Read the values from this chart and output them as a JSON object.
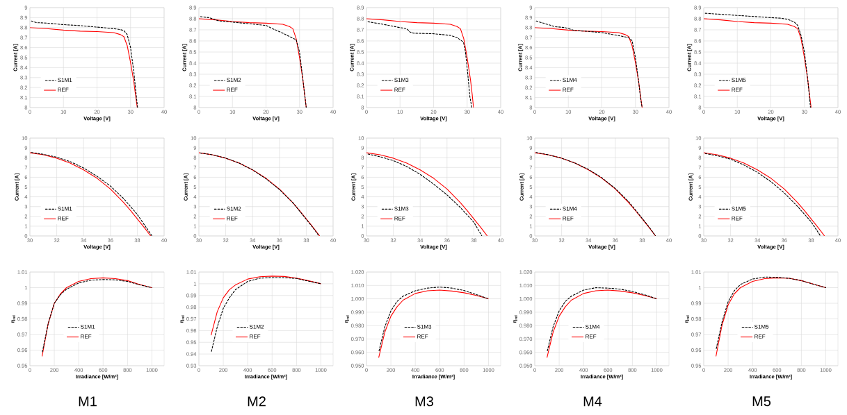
{
  "chart_data": [
    {
      "type": "line",
      "xlabel": "Voltage [V]",
      "ylabel": "Current [A]",
      "xlim": [
        0,
        40
      ],
      "ylim": [
        8,
        9
      ],
      "xticks": [
        0,
        10,
        20,
        30,
        40
      ],
      "yticks": [
        8,
        8.1,
        8.2,
        8.3,
        8.4,
        8.5,
        8.6,
        8.7,
        8.8,
        8.9,
        9
      ],
      "grid": true,
      "legend": "bottom left",
      "series": [
        {
          "name": "S1M1",
          "color": "#000000",
          "line_style": "dashed",
          "x": [
            0,
            2,
            5,
            10,
            15,
            20,
            25,
            27,
            28,
            29,
            30,
            31,
            31.6,
            32.1
          ],
          "values": [
            8.87,
            8.85,
            8.845,
            8.83,
            8.82,
            8.805,
            8.79,
            8.78,
            8.77,
            8.73,
            8.6,
            8.35,
            8.15,
            8.0
          ]
        },
        {
          "name": "REF",
          "color": "#ff0000",
          "line_style": "solid",
          "x": [
            0,
            5,
            10,
            15,
            20,
            25,
            27,
            28,
            29,
            30,
            31,
            31.5,
            32
          ],
          "values": [
            8.8,
            8.79,
            8.775,
            8.765,
            8.76,
            8.75,
            8.73,
            8.71,
            8.62,
            8.45,
            8.25,
            8.12,
            8.0
          ]
        }
      ]
    },
    {
      "type": "line",
      "xlabel": "Voltage [V]",
      "ylabel": "Current [A]",
      "xlim": [
        0,
        40
      ],
      "ylim": [
        8,
        8.9
      ],
      "xticks": [
        0,
        10,
        20,
        30,
        40
      ],
      "yticks": [
        8,
        8.1,
        8.2,
        8.3,
        8.4,
        8.5,
        8.6,
        8.7,
        8.8,
        8.9
      ],
      "grid": true,
      "legend": "bottom left",
      "series": [
        {
          "name": "S1M2",
          "color": "#000000",
          "line_style": "dashed",
          "x": [
            0,
            3,
            6,
            10,
            15,
            20,
            22,
            25,
            27,
            29,
            30,
            31,
            31.6,
            32
          ],
          "values": [
            8.82,
            8.81,
            8.78,
            8.77,
            8.755,
            8.74,
            8.71,
            8.67,
            8.64,
            8.61,
            8.5,
            8.25,
            8.1,
            8.0
          ]
        },
        {
          "name": "REF",
          "color": "#ff0000",
          "line_style": "solid",
          "x": [
            0,
            5,
            10,
            15,
            20,
            25,
            27,
            28,
            29,
            30,
            31,
            31.5,
            32
          ],
          "values": [
            8.8,
            8.79,
            8.775,
            8.765,
            8.76,
            8.75,
            8.73,
            8.71,
            8.62,
            8.45,
            8.25,
            8.12,
            8.0
          ]
        }
      ]
    },
    {
      "type": "line",
      "xlabel": "Voltage [V]",
      "ylabel": "Current [A]",
      "xlim": [
        0,
        40
      ],
      "ylim": [
        8,
        8.9
      ],
      "xticks": [
        0,
        10,
        20,
        30,
        40
      ],
      "yticks": [
        8,
        8.1,
        8.2,
        8.3,
        8.4,
        8.5,
        8.6,
        8.7,
        8.8,
        8.9
      ],
      "grid": true,
      "legend": "bottom left",
      "series": [
        {
          "name": "S1M3",
          "color": "#000000",
          "line_style": "dashed",
          "x": [
            0,
            5,
            10,
            12,
            13,
            14,
            20,
            25,
            27,
            28.9,
            29.5,
            30.2,
            30.8,
            31.4
          ],
          "values": [
            8.775,
            8.75,
            8.72,
            8.71,
            8.68,
            8.67,
            8.665,
            8.65,
            8.63,
            8.59,
            8.5,
            8.3,
            8.1,
            8.0
          ]
        },
        {
          "name": "REF",
          "color": "#ff0000",
          "line_style": "solid",
          "x": [
            0,
            5,
            10,
            15,
            20,
            25,
            27,
            28,
            29,
            30,
            31,
            31.5,
            31.9
          ],
          "values": [
            8.8,
            8.79,
            8.775,
            8.765,
            8.76,
            8.75,
            8.73,
            8.71,
            8.62,
            8.45,
            8.25,
            8.12,
            8.0
          ]
        }
      ]
    },
    {
      "type": "line",
      "xlabel": "Voltage [V]",
      "ylabel": "Current [A]",
      "xlim": [
        0,
        40
      ],
      "ylim": [
        8,
        9
      ],
      "xticks": [
        0,
        10,
        20,
        30,
        40
      ],
      "yticks": [
        8,
        8.1,
        8.2,
        8.3,
        8.4,
        8.5,
        8.6,
        8.7,
        8.8,
        8.9,
        9
      ],
      "grid": true,
      "legend": "bottom left",
      "series": [
        {
          "name": "S1M4",
          "color": "#000000",
          "line_style": "dashed",
          "x": [
            0,
            3,
            5,
            6,
            9,
            12,
            15,
            20,
            25,
            28,
            29,
            30,
            31,
            31.5,
            32
          ],
          "values": [
            8.87,
            8.84,
            8.82,
            8.81,
            8.8,
            8.77,
            8.765,
            8.75,
            8.72,
            8.7,
            8.67,
            8.5,
            8.25,
            8.1,
            8.0
          ]
        },
        {
          "name": "REF",
          "color": "#ff0000",
          "line_style": "solid",
          "x": [
            0,
            5,
            10,
            15,
            20,
            25,
            27,
            28,
            29,
            30,
            31,
            31.5,
            32
          ],
          "values": [
            8.8,
            8.79,
            8.775,
            8.765,
            8.76,
            8.75,
            8.73,
            8.71,
            8.62,
            8.45,
            8.25,
            8.12,
            8.0
          ]
        }
      ]
    },
    {
      "type": "line",
      "xlabel": "Voltage [V]",
      "ylabel": "Current [A]",
      "xlim": [
        0,
        40
      ],
      "ylim": [
        8,
        8.9
      ],
      "xticks": [
        0,
        10,
        20,
        30,
        40
      ],
      "yticks": [
        8,
        8.1,
        8.2,
        8.3,
        8.4,
        8.5,
        8.6,
        8.7,
        8.8,
        8.9
      ],
      "grid": true,
      "legend": "bottom left",
      "series": [
        {
          "name": "S1M5",
          "color": "#000000",
          "line_style": "dashed",
          "x": [
            0,
            5,
            10,
            15,
            20,
            23,
            25,
            27,
            28,
            29,
            30,
            31,
            31.5,
            31.8
          ],
          "values": [
            8.85,
            8.84,
            8.83,
            8.82,
            8.81,
            8.805,
            8.795,
            8.77,
            8.74,
            8.65,
            8.5,
            8.25,
            8.1,
            8.0
          ]
        },
        {
          "name": "REF",
          "color": "#ff0000",
          "line_style": "solid",
          "x": [
            0,
            5,
            10,
            15,
            20,
            25,
            27,
            28,
            29,
            30,
            31,
            31.5,
            32
          ],
          "values": [
            8.8,
            8.79,
            8.775,
            8.765,
            8.76,
            8.75,
            8.73,
            8.71,
            8.62,
            8.45,
            8.25,
            8.12,
            8.0
          ]
        }
      ]
    },
    {
      "type": "line",
      "xlabel": "Voltage [V]",
      "ylabel": "Current [A]",
      "xlim": [
        30,
        40
      ],
      "ylim": [
        0,
        10
      ],
      "xticks": [
        30,
        32,
        34,
        36,
        38,
        40
      ],
      "yticks": [
        0,
        1,
        2,
        3,
        4,
        5,
        6,
        7,
        8,
        9,
        10
      ],
      "grid": true,
      "legend": "bottom left",
      "series": [
        {
          "name": "S1M1",
          "color": "#000000",
          "line_style": "dashed",
          "x": [
            30,
            31,
            32,
            33,
            34,
            35,
            36,
            37,
            38,
            38.5,
            39.1
          ],
          "values": [
            8.55,
            8.35,
            8.05,
            7.6,
            6.95,
            6.1,
            5.1,
            3.8,
            2.2,
            1.2,
            0
          ]
        },
        {
          "name": "REF",
          "color": "#ff0000",
          "line_style": "solid",
          "x": [
            30,
            31,
            32,
            33,
            34,
            35,
            36,
            37,
            37.5,
            38,
            38.5,
            39
          ],
          "values": [
            8.5,
            8.3,
            7.95,
            7.45,
            6.75,
            5.9,
            4.8,
            3.4,
            2.6,
            1.75,
            0.9,
            0
          ]
        }
      ]
    },
    {
      "type": "line",
      "xlabel": "Voltage [V]",
      "ylabel": "Current [A]",
      "xlim": [
        30,
        40
      ],
      "ylim": [
        0,
        10
      ],
      "xticks": [
        30,
        32,
        34,
        36,
        38,
        40
      ],
      "yticks": [
        0,
        1,
        2,
        3,
        4,
        5,
        6,
        7,
        8,
        9,
        10
      ],
      "grid": true,
      "legend": "bottom left",
      "series": [
        {
          "name": "S1M2",
          "color": "#000000",
          "line_style": "dashed",
          "x": [
            30,
            31,
            32,
            33,
            34,
            35,
            36,
            37,
            38,
            38.5,
            38.95
          ],
          "values": [
            8.5,
            8.3,
            7.95,
            7.45,
            6.75,
            5.85,
            4.75,
            3.4,
            1.7,
            0.85,
            0
          ]
        },
        {
          "name": "REF",
          "color": "#ff0000",
          "line_style": "solid",
          "x": [
            30,
            31,
            32,
            33,
            34,
            35,
            36,
            37,
            37.5,
            38,
            38.5,
            39
          ],
          "values": [
            8.5,
            8.3,
            7.95,
            7.45,
            6.75,
            5.9,
            4.8,
            3.4,
            2.6,
            1.75,
            0.9,
            0
          ]
        }
      ]
    },
    {
      "type": "line",
      "xlabel": "Voltage [V]",
      "ylabel": "Current [A]",
      "xlim": [
        30,
        40
      ],
      "ylim": [
        0,
        10
      ],
      "xticks": [
        30,
        32,
        34,
        36,
        38,
        40
      ],
      "yticks": [
        0,
        1,
        2,
        3,
        4,
        5,
        6,
        7,
        8,
        9,
        10
      ],
      "grid": true,
      "legend": "bottom left",
      "series": [
        {
          "name": "S1M3",
          "color": "#000000",
          "line_style": "dashed",
          "x": [
            30,
            31,
            32,
            33,
            34,
            35,
            36,
            37,
            38,
            38.6
          ],
          "values": [
            8.4,
            8.1,
            7.7,
            7.1,
            6.3,
            5.3,
            4.2,
            2.9,
            1.4,
            0
          ]
        },
        {
          "name": "REF",
          "color": "#ff0000",
          "line_style": "solid",
          "x": [
            30,
            31,
            32,
            33,
            34,
            35,
            36,
            37,
            37.5,
            38,
            38.5,
            39
          ],
          "values": [
            8.5,
            8.3,
            7.95,
            7.45,
            6.75,
            5.9,
            4.8,
            3.4,
            2.6,
            1.75,
            0.9,
            0
          ]
        }
      ]
    },
    {
      "type": "line",
      "xlabel": "Voltage [V]",
      "ylabel": "Current [A]",
      "xlim": [
        30,
        40
      ],
      "ylim": [
        0,
        10
      ],
      "xticks": [
        30,
        32,
        34,
        36,
        38,
        40
      ],
      "yticks": [
        0,
        1,
        2,
        3,
        4,
        5,
        6,
        7,
        8,
        9,
        10
      ],
      "grid": true,
      "legend": "bottom left",
      "series": [
        {
          "name": "S1M4",
          "color": "#000000",
          "line_style": "dashed",
          "x": [
            30,
            31,
            32,
            33,
            34,
            35,
            36,
            37,
            38,
            38.5,
            39
          ],
          "values": [
            8.55,
            8.3,
            7.95,
            7.45,
            6.8,
            5.95,
            4.85,
            3.5,
            1.8,
            0.95,
            0
          ]
        },
        {
          "name": "REF",
          "color": "#ff0000",
          "line_style": "solid",
          "x": [
            30,
            31,
            32,
            33,
            34,
            35,
            36,
            37,
            37.5,
            38,
            38.5,
            39
          ],
          "values": [
            8.5,
            8.3,
            7.95,
            7.45,
            6.75,
            5.9,
            4.8,
            3.4,
            2.6,
            1.75,
            0.9,
            0
          ]
        }
      ]
    },
    {
      "type": "line",
      "xlabel": "Voltage [V]",
      "ylabel": "Current [A]",
      "xlim": [
        30,
        40
      ],
      "ylim": [
        0,
        10
      ],
      "xticks": [
        30,
        32,
        34,
        36,
        38,
        40
      ],
      "yticks": [
        0,
        1,
        2,
        3,
        4,
        5,
        6,
        7,
        8,
        9,
        10
      ],
      "grid": true,
      "legend": "bottom left",
      "series": [
        {
          "name": "S1M5",
          "color": "#000000",
          "line_style": "dashed",
          "x": [
            30,
            31,
            32,
            33,
            34,
            35,
            36,
            37,
            38,
            38.7
          ],
          "values": [
            8.45,
            8.2,
            7.85,
            7.25,
            6.5,
            5.55,
            4.4,
            3.0,
            1.45,
            0
          ]
        },
        {
          "name": "REF",
          "color": "#ff0000",
          "line_style": "solid",
          "x": [
            30,
            31,
            32,
            33,
            34,
            35,
            36,
            37,
            37.5,
            38,
            38.5,
            39
          ],
          "values": [
            8.5,
            8.3,
            7.95,
            7.45,
            6.75,
            5.9,
            4.8,
            3.4,
            2.6,
            1.75,
            0.9,
            0
          ]
        }
      ]
    },
    {
      "type": "line",
      "xlabel": "Irradiance [W/m²]",
      "ylabel": "η$_{rel}$",
      "xlim": [
        0,
        1100
      ],
      "ylim": [
        0.95,
        1.01
      ],
      "xticks": [
        0,
        200,
        400,
        600,
        800,
        1000
      ],
      "yticks": [
        0.95,
        0.96,
        0.97,
        0.98,
        0.99,
        1,
        1.01
      ],
      "grid": true,
      "legend": "left",
      "annotations": [
        "M1"
      ],
      "series": [
        {
          "name": "S1M1",
          "color": "#000000",
          "line_style": "dashed",
          "x": [
            100,
            150,
            200,
            250,
            300,
            400,
            500,
            600,
            700,
            800,
            900,
            1000
          ],
          "values": [
            0.958,
            0.977,
            0.99,
            0.9955,
            0.999,
            1.003,
            1.0048,
            1.0052,
            1.005,
            1.004,
            1.0018,
            1.0
          ]
        },
        {
          "name": "REF",
          "color": "#ff0000",
          "line_style": "solid",
          "x": [
            100,
            150,
            200,
            250,
            300,
            400,
            500,
            600,
            700,
            800,
            900,
            1000
          ],
          "values": [
            0.956,
            0.977,
            0.99,
            0.996,
            1.0,
            1.004,
            1.0058,
            1.0063,
            1.0058,
            1.0045,
            1.002,
            1.0
          ]
        }
      ]
    },
    {
      "type": "line",
      "xlabel": "Irradiance [W/m²]",
      "ylabel": "η$_{rel}$",
      "xlim": [
        0,
        1100
      ],
      "ylim": [
        0.93,
        1.01
      ],
      "xticks": [
        0,
        200,
        400,
        600,
        800,
        1000
      ],
      "yticks": [
        0.93,
        0.94,
        0.95,
        0.96,
        0.97,
        0.98,
        0.99,
        1,
        1.01
      ],
      "grid": true,
      "legend": "left",
      "annotations": [
        "M2"
      ],
      "series": [
        {
          "name": "S1M2",
          "color": "#000000",
          "line_style": "dashed",
          "x": [
            100,
            150,
            200,
            250,
            300,
            400,
            500,
            600,
            700,
            800,
            900,
            1000
          ],
          "values": [
            0.941,
            0.963,
            0.979,
            0.988,
            0.995,
            1.002,
            1.0048,
            1.0053,
            1.0052,
            1.0045,
            1.0022,
            1.0
          ]
        },
        {
          "name": "REF",
          "color": "#ff0000",
          "line_style": "solid",
          "x": [
            100,
            150,
            200,
            250,
            300,
            400,
            500,
            600,
            700,
            800,
            900,
            1000
          ],
          "values": [
            0.956,
            0.976,
            0.988,
            0.995,
            0.999,
            1.004,
            1.006,
            1.0065,
            1.0062,
            1.0048,
            1.0025,
            1.0
          ]
        }
      ]
    },
    {
      "type": "line",
      "xlabel": "Irradiance [W/m²]",
      "ylabel": "η$_{rel}$",
      "xlim": [
        0,
        1100
      ],
      "ylim": [
        0.95,
        1.02
      ],
      "xticks": [
        0,
        200,
        400,
        600,
        800,
        1000
      ],
      "yticks": [
        {
          "value": 0.95,
          "label": "0.950"
        },
        {
          "value": 0.96,
          "label": "0.960"
        },
        {
          "value": 0.97,
          "label": "0.970"
        },
        {
          "value": 0.98,
          "label": "0.980"
        },
        {
          "value": 0.99,
          "label": "0.990"
        },
        {
          "value": 1,
          "label": "1.000"
        },
        {
          "value": 1.01,
          "label": "1.010"
        },
        {
          "value": 1.02,
          "label": "1.020"
        }
      ],
      "grid": true,
      "legend": "left",
      "annotations": [
        "M3"
      ],
      "series": [
        {
          "name": "S1M3",
          "color": "#000000",
          "line_style": "dashed",
          "x": [
            100,
            150,
            200,
            250,
            300,
            400,
            500,
            600,
            700,
            800,
            900,
            1000
          ],
          "values": [
            0.96,
            0.979,
            0.991,
            0.998,
            1.002,
            1.006,
            1.008,
            1.0088,
            1.008,
            1.0062,
            1.0032,
            1.0
          ]
        },
        {
          "name": "REF",
          "color": "#ff0000",
          "line_style": "solid",
          "x": [
            100,
            150,
            200,
            250,
            300,
            400,
            500,
            600,
            700,
            800,
            900,
            1000
          ],
          "values": [
            0.956,
            0.975,
            0.987,
            0.994,
            0.999,
            1.004,
            1.006,
            1.0065,
            1.0058,
            1.0045,
            1.0025,
            1.0
          ]
        }
      ]
    },
    {
      "type": "line",
      "xlabel": "Irradiance [W/m²]",
      "ylabel": "η$_{rel}$",
      "xlim": [
        0,
        1100
      ],
      "ylim": [
        0.95,
        1.02
      ],
      "xticks": [
        0,
        200,
        400,
        600,
        800,
        1000
      ],
      "yticks": [
        {
          "value": 0.95,
          "label": "0.950"
        },
        {
          "value": 0.96,
          "label": "0.960"
        },
        {
          "value": 0.97,
          "label": "0.970"
        },
        {
          "value": 0.98,
          "label": "0.980"
        },
        {
          "value": 0.99,
          "label": "0.990"
        },
        {
          "value": 1,
          "label": "1.000"
        },
        {
          "value": 1.01,
          "label": "1.010"
        },
        {
          "value": 1.02,
          "label": "1.020"
        }
      ],
      "grid": true,
      "legend": "left",
      "annotations": [
        "M4"
      ],
      "series": [
        {
          "name": "S1M4",
          "color": "#000000",
          "line_style": "dashed",
          "x": [
            100,
            150,
            200,
            250,
            300,
            400,
            500,
            600,
            700,
            800,
            900,
            1000
          ],
          "values": [
            0.96,
            0.979,
            0.991,
            0.998,
            1.002,
            1.0065,
            1.0083,
            1.008,
            1.0072,
            1.0055,
            1.003,
            1.0
          ]
        },
        {
          "name": "REF",
          "color": "#ff0000",
          "line_style": "solid",
          "x": [
            100,
            150,
            200,
            250,
            300,
            400,
            500,
            600,
            700,
            800,
            900,
            1000
          ],
          "values": [
            0.956,
            0.975,
            0.987,
            0.994,
            0.999,
            1.004,
            1.006,
            1.0065,
            1.0058,
            1.0045,
            1.0025,
            1.0
          ]
        }
      ]
    },
    {
      "type": "line",
      "xlabel": "Irradiance [W/m²]",
      "ylabel": "η$_{rel}$",
      "xlim": [
        0,
        1100
      ],
      "ylim": [
        0.95,
        1.01
      ],
      "xticks": [
        0,
        200,
        400,
        600,
        800,
        1000
      ],
      "yticks": [
        0.95,
        0.96,
        0.97,
        0.98,
        0.99,
        1,
        1.01
      ],
      "grid": true,
      "legend": "left",
      "annotations": [
        "M5"
      ],
      "series": [
        {
          "name": "S1M5",
          "color": "#000000",
          "line_style": "dashed",
          "x": [
            100,
            150,
            200,
            250,
            300,
            400,
            500,
            600,
            700,
            800,
            900,
            1000
          ],
          "values": [
            0.96,
            0.978,
            0.991,
            0.998,
            1.002,
            1.0055,
            1.0068,
            1.0066,
            1.006,
            1.0045,
            1.0022,
            1.0
          ]
        },
        {
          "name": "REF",
          "color": "#ff0000",
          "line_style": "solid",
          "x": [
            100,
            150,
            200,
            250,
            300,
            400,
            500,
            600,
            700,
            800,
            900,
            1000
          ],
          "values": [
            0.956,
            0.976,
            0.989,
            0.996,
            1.0,
            1.004,
            1.0058,
            1.0063,
            1.006,
            1.0045,
            1.0022,
            1.0
          ]
        }
      ]
    }
  ]
}
